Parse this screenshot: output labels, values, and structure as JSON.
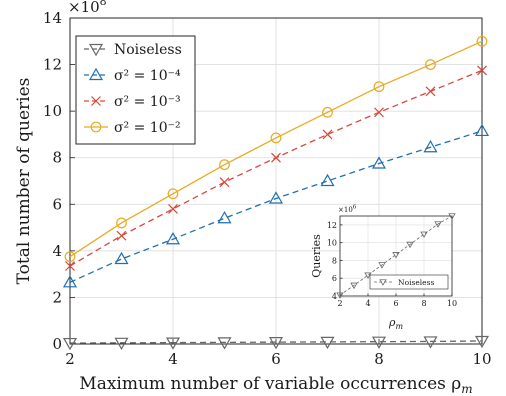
{
  "chart_data": [
    {
      "type": "line",
      "xlabel": "Maximum number of variable occurrences ρm",
      "ylabel": "Total number of queries",
      "y_scale_label": "×10^8",
      "xlim": [
        2,
        10
      ],
      "ylim": [
        0,
        14
      ],
      "xticks": [
        "2",
        "4",
        "6",
        "8",
        "10"
      ],
      "yticks": [
        "0",
        "2",
        "4",
        "6",
        "8",
        "10",
        "12",
        "14"
      ],
      "grid": true,
      "legend_position": "top-left",
      "x": [
        2,
        3,
        4,
        5,
        6,
        7,
        8,
        9,
        10
      ],
      "series": [
        {
          "name": "Noiseless",
          "marker": "triangle-down",
          "line": "dashed",
          "color": "#666666",
          "values": [
            0.04,
            0.05,
            0.06,
            0.07,
            0.08,
            0.09,
            0.1,
            0.11,
            0.13
          ]
        },
        {
          "name": "σ² = 10⁻⁴",
          "marker": "triangle-up",
          "line": "dashed",
          "color": "#1f6fb0",
          "values": [
            2.65,
            3.65,
            4.5,
            5.4,
            6.25,
            7.0,
            7.75,
            8.45,
            9.15
          ]
        },
        {
          "name": "σ² = 10⁻³",
          "marker": "x",
          "line": "dashed",
          "color": "#d9473b",
          "values": [
            3.35,
            4.65,
            5.8,
            6.95,
            8.0,
            9.0,
            9.95,
            10.85,
            11.75
          ]
        },
        {
          "name": "σ² = 10⁻²",
          "marker": "circle",
          "line": "solid",
          "color": "#e8aa22",
          "values": [
            3.75,
            5.2,
            6.45,
            7.7,
            8.85,
            9.95,
            11.05,
            12.0,
            13.0
          ]
        }
      ]
    },
    {
      "type": "line",
      "xlabel": "ρm",
      "ylabel": "Queries",
      "y_scale_label": "×10^6",
      "xlim": [
        2,
        10
      ],
      "ylim": [
        4,
        13
      ],
      "xticks": [
        "2",
        "4",
        "6",
        "8",
        "10"
      ],
      "yticks": [
        "4",
        "6",
        "8",
        "10",
        "12"
      ],
      "grid": true,
      "legend_position": "bottom-right",
      "x": [
        2,
        3,
        4,
        5,
        6,
        7,
        8,
        9,
        10
      ],
      "series": [
        {
          "name": "Noiseless",
          "marker": "triangle-down",
          "line": "dashed",
          "color": "#666666",
          "values": [
            4.1,
            5.2,
            6.35,
            7.5,
            8.65,
            9.8,
            10.95,
            12.1,
            13.0
          ]
        }
      ]
    }
  ]
}
